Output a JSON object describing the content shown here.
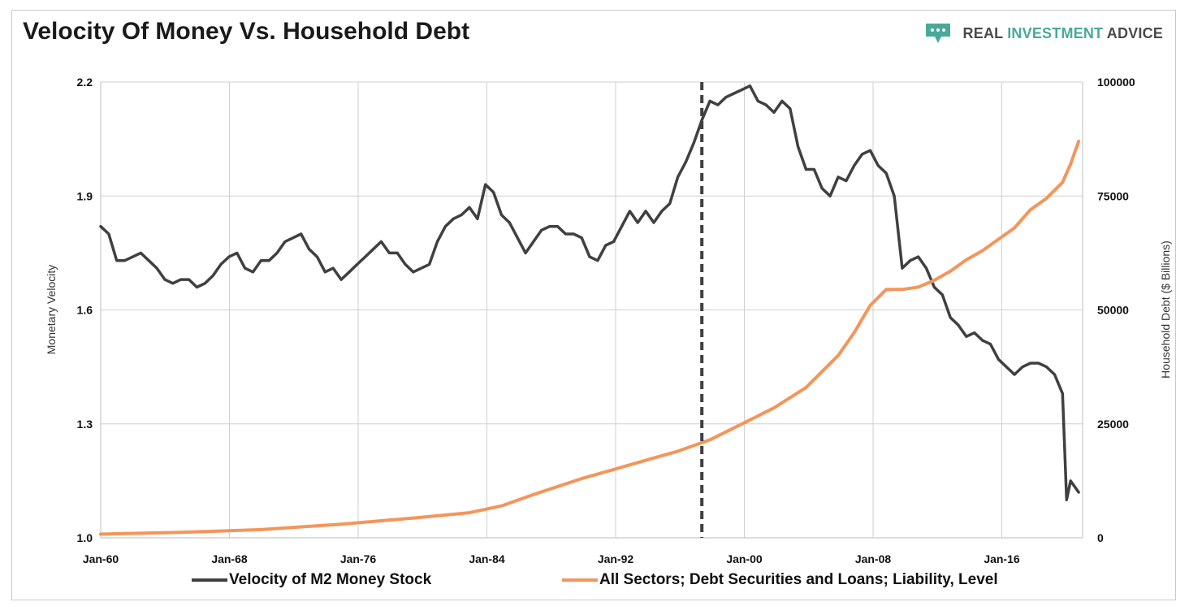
{
  "header": {
    "title": "Velocity Of Money Vs. Household Debt",
    "brand": {
      "word1": "REAL ",
      "word2": "INVESTMENT",
      "word3": " ADVICE",
      "logo_icon": "speech-bubble-dots-icon",
      "accent_color": "#48a99a"
    }
  },
  "chart_data": {
    "type": "line",
    "title": "Velocity Of Money Vs. Household Debt",
    "x_tick_labels": [
      "Jan-60",
      "Jan-68",
      "Jan-76",
      "Jan-84",
      "Jan-92",
      "Jan-00",
      "Jan-08",
      "Jan-16"
    ],
    "x_range": [
      "Jan-60",
      "Jan-21"
    ],
    "y_left": {
      "label": "Monetary Velocity",
      "ticks": [
        "1.0",
        "1.3",
        "1.6",
        "1.9",
        "2.2"
      ],
      "range": [
        1.0,
        2.2
      ]
    },
    "y_right": {
      "label": "Household Debt ($ Billions)",
      "ticks": [
        "0",
        "25000",
        "50000",
        "75000",
        "100000"
      ],
      "range": [
        0,
        100000
      ]
    },
    "grid": true,
    "legend_position": "bottom",
    "vertical_marker": {
      "date": "1997-07",
      "style": "dashed"
    },
    "series": [
      {
        "name": "Velocity of M2 Money Stock",
        "axis": "left",
        "color": "#404040",
        "points": [
          [
            "1960-01",
            1.82
          ],
          [
            "1960-07",
            1.8
          ],
          [
            "1961-01",
            1.73
          ],
          [
            "1961-07",
            1.73
          ],
          [
            "1962-01",
            1.74
          ],
          [
            "1962-07",
            1.75
          ],
          [
            "1963-01",
            1.73
          ],
          [
            "1963-07",
            1.71
          ],
          [
            "1964-01",
            1.68
          ],
          [
            "1964-07",
            1.67
          ],
          [
            "1965-01",
            1.68
          ],
          [
            "1965-07",
            1.68
          ],
          [
            "1966-01",
            1.66
          ],
          [
            "1966-07",
            1.67
          ],
          [
            "1967-01",
            1.69
          ],
          [
            "1967-07",
            1.72
          ],
          [
            "1968-01",
            1.74
          ],
          [
            "1968-07",
            1.75
          ],
          [
            "1969-01",
            1.71
          ],
          [
            "1969-07",
            1.7
          ],
          [
            "1970-01",
            1.73
          ],
          [
            "1970-07",
            1.73
          ],
          [
            "1971-01",
            1.75
          ],
          [
            "1971-07",
            1.78
          ],
          [
            "1972-01",
            1.79
          ],
          [
            "1972-07",
            1.8
          ],
          [
            "1973-01",
            1.76
          ],
          [
            "1973-07",
            1.74
          ],
          [
            "1974-01",
            1.7
          ],
          [
            "1974-07",
            1.71
          ],
          [
            "1975-01",
            1.68
          ],
          [
            "1975-07",
            1.7
          ],
          [
            "1976-01",
            1.72
          ],
          [
            "1976-07",
            1.74
          ],
          [
            "1977-01",
            1.76
          ],
          [
            "1977-07",
            1.78
          ],
          [
            "1978-01",
            1.75
          ],
          [
            "1978-07",
            1.75
          ],
          [
            "1979-01",
            1.72
          ],
          [
            "1979-07",
            1.7
          ],
          [
            "1980-01",
            1.71
          ],
          [
            "1980-07",
            1.72
          ],
          [
            "1981-01",
            1.78
          ],
          [
            "1981-07",
            1.82
          ],
          [
            "1982-01",
            1.84
          ],
          [
            "1982-07",
            1.85
          ],
          [
            "1983-01",
            1.87
          ],
          [
            "1983-07",
            1.84
          ],
          [
            "1984-01",
            1.93
          ],
          [
            "1984-07",
            1.91
          ],
          [
            "1985-01",
            1.85
          ],
          [
            "1985-07",
            1.83
          ],
          [
            "1986-01",
            1.79
          ],
          [
            "1986-07",
            1.75
          ],
          [
            "1987-01",
            1.78
          ],
          [
            "1987-07",
            1.81
          ],
          [
            "1988-01",
            1.82
          ],
          [
            "1988-07",
            1.82
          ],
          [
            "1989-01",
            1.8
          ],
          [
            "1989-07",
            1.8
          ],
          [
            "1990-01",
            1.79
          ],
          [
            "1990-07",
            1.74
          ],
          [
            "1991-01",
            1.73
          ],
          [
            "1991-07",
            1.77
          ],
          [
            "1992-01",
            1.78
          ],
          [
            "1992-07",
            1.82
          ],
          [
            "1993-01",
            1.86
          ],
          [
            "1993-07",
            1.83
          ],
          [
            "1994-01",
            1.86
          ],
          [
            "1994-07",
            1.83
          ],
          [
            "1995-01",
            1.86
          ],
          [
            "1995-07",
            1.88
          ],
          [
            "1996-01",
            1.95
          ],
          [
            "1996-07",
            1.99
          ],
          [
            "1997-01",
            2.04
          ],
          [
            "1997-07",
            2.1
          ],
          [
            "1998-01",
            2.15
          ],
          [
            "1998-07",
            2.14
          ],
          [
            "1999-01",
            2.16
          ],
          [
            "1999-07",
            2.17
          ],
          [
            "2000-01",
            2.18
          ],
          [
            "2000-07",
            2.19
          ],
          [
            "2001-01",
            2.15
          ],
          [
            "2001-07",
            2.14
          ],
          [
            "2002-01",
            2.12
          ],
          [
            "2002-07",
            2.15
          ],
          [
            "2003-01",
            2.13
          ],
          [
            "2003-07",
            2.03
          ],
          [
            "2004-01",
            1.97
          ],
          [
            "2004-07",
            1.97
          ],
          [
            "2005-01",
            1.92
          ],
          [
            "2005-07",
            1.9
          ],
          [
            "2006-01",
            1.95
          ],
          [
            "2006-07",
            1.94
          ],
          [
            "2007-01",
            1.98
          ],
          [
            "2007-07",
            2.01
          ],
          [
            "2008-01",
            2.02
          ],
          [
            "2008-07",
            1.98
          ],
          [
            "2009-01",
            1.96
          ],
          [
            "2009-07",
            1.9
          ],
          [
            "2010-01",
            1.71
          ],
          [
            "2010-07",
            1.73
          ],
          [
            "2011-01",
            1.74
          ],
          [
            "2011-07",
            1.71
          ],
          [
            "2012-01",
            1.66
          ],
          [
            "2012-07",
            1.64
          ],
          [
            "2013-01",
            1.58
          ],
          [
            "2013-07",
            1.56
          ],
          [
            "2014-01",
            1.53
          ],
          [
            "2014-07",
            1.54
          ],
          [
            "2015-01",
            1.52
          ],
          [
            "2015-07",
            1.51
          ],
          [
            "2016-01",
            1.47
          ],
          [
            "2016-07",
            1.45
          ],
          [
            "2017-01",
            1.43
          ],
          [
            "2017-07",
            1.45
          ],
          [
            "2018-01",
            1.46
          ],
          [
            "2018-07",
            1.46
          ],
          [
            "2019-01",
            1.45
          ],
          [
            "2019-07",
            1.43
          ],
          [
            "2020-01",
            1.38
          ],
          [
            "2020-04",
            1.1
          ],
          [
            "2020-07",
            1.15
          ],
          [
            "2021-01",
            1.12
          ]
        ]
      },
      {
        "name": "All Sectors; Debt Securities and Loans; Liability, Level",
        "axis": "right",
        "color": "#f4955a",
        "points": [
          [
            "1960-01",
            800
          ],
          [
            "1965-01",
            1200
          ],
          [
            "1970-01",
            1800
          ],
          [
            "1975-01",
            3000
          ],
          [
            "1980-01",
            4500
          ],
          [
            "1983-01",
            5500
          ],
          [
            "1985-01",
            7000
          ],
          [
            "1987-01",
            9500
          ],
          [
            "1990-01",
            13000
          ],
          [
            "1992-01",
            15000
          ],
          [
            "1994-01",
            17000
          ],
          [
            "1996-01",
            19000
          ],
          [
            "1998-01",
            21500
          ],
          [
            "2000-01",
            25000
          ],
          [
            "2002-01",
            28500
          ],
          [
            "2004-01",
            33000
          ],
          [
            "2006-01",
            40000
          ],
          [
            "2007-01",
            45000
          ],
          [
            "2008-01",
            51000
          ],
          [
            "2009-01",
            54500
          ],
          [
            "2010-01",
            54500
          ],
          [
            "2011-01",
            55000
          ],
          [
            "2012-01",
            56500
          ],
          [
            "2013-01",
            58500
          ],
          [
            "2014-01",
            61000
          ],
          [
            "2015-01",
            63000
          ],
          [
            "2016-01",
            65500
          ],
          [
            "2017-01",
            68000
          ],
          [
            "2018-01",
            72000
          ],
          [
            "2019-01",
            74500
          ],
          [
            "2020-01",
            78000
          ],
          [
            "2020-07",
            82000
          ],
          [
            "2021-01",
            87000
          ]
        ]
      }
    ]
  }
}
